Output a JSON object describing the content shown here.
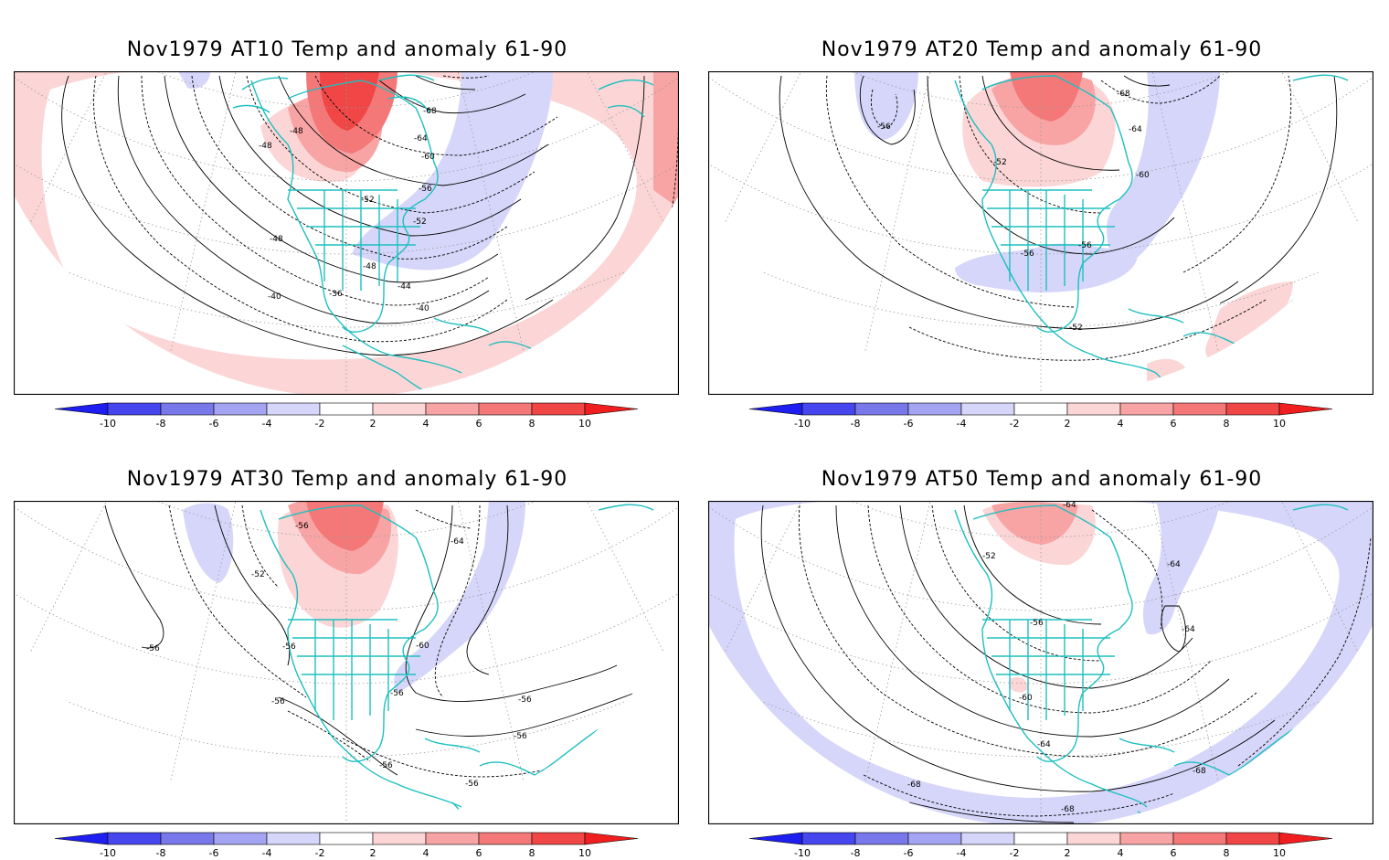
{
  "colors": {
    "neg": [
      "#d6d6fa",
      "#a4a4f2",
      "#7878ea",
      "#4646ee",
      "#1e1ef0"
    ],
    "pos": [
      "#fcd6d6",
      "#f8a4a4",
      "#f47878",
      "#f04646",
      "#f01e1e"
    ],
    "coast": "#1fbfbf",
    "contour": "#000000",
    "grid": "#999999"
  },
  "colorbar": {
    "ticks": [
      "-10",
      "-8",
      "-6",
      "-4",
      "-2",
      "2",
      "4",
      "6",
      "8",
      "10"
    ]
  },
  "panels": [
    {
      "title": "Nov1979 AT10 Temp and anomaly 61-90",
      "labels": [
        "-48",
        "-68",
        "-64",
        "-60",
        "-56",
        "-52",
        "-52",
        "-48",
        "-48",
        "-48",
        "-44",
        "-40",
        "-40",
        "-36"
      ]
    },
    {
      "title": "Nov1979 AT20 Temp and anomaly 61-90",
      "labels": [
        "-68",
        "-64",
        "-56",
        "-52",
        "-60",
        "-56",
        "-56",
        "-52"
      ]
    },
    {
      "title": "Nov1979 AT30 Temp and anomaly 61-90",
      "labels": [
        "-56",
        "-64",
        "-52",
        "-56",
        "-56",
        "-60",
        "-56",
        "-56",
        "-56",
        "-56",
        "-56",
        "-56"
      ]
    },
    {
      "title": "Nov1979 AT50 Temp and anomaly 61-90",
      "labels": [
        "-64",
        "-52",
        "-64",
        "-56",
        "-64",
        "-60",
        "-64",
        "-68",
        "-68",
        "-68"
      ]
    }
  ]
}
